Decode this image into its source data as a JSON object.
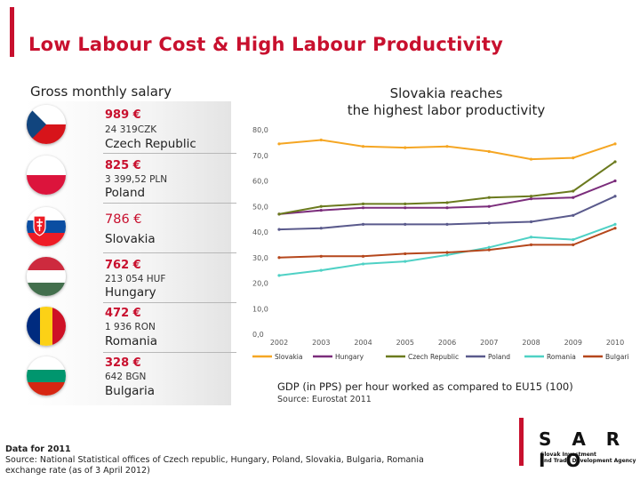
{
  "title": "Low Labour Cost & High Labour Productivity",
  "left_header": "Gross monthly salary",
  "countries": [
    {
      "amount": "989 €",
      "local": "24 319CZK",
      "name": "Czech Republic",
      "flag": "czech"
    },
    {
      "amount": "825 €",
      "local": "3 399,52 PLN",
      "name": "Poland",
      "flag": "poland"
    },
    {
      "amount": "786 €",
      "local": "",
      "name": "Slovakia",
      "flag": "slovakia"
    },
    {
      "amount": "762 €",
      "local": "213 054 HUF",
      "name": "Hungary",
      "flag": "hungary"
    },
    {
      "amount": "472 €",
      "local": "1 936 RON",
      "name": "Romania",
      "flag": "romania"
    },
    {
      "amount": "328 €",
      "local": "642 BGN",
      "name": "Bulgaria",
      "flag": "bulgaria"
    }
  ],
  "chart_title_line1": "Slovakia reaches",
  "chart_title_line2": "the highest labor productivity",
  "chart_caption": "GDP (in PPS) per hour worked as compared to EU15 (100)",
  "chart_source": "Source: Eurostat 2011",
  "bottom_note": {
    "line1": "Data for 2011",
    "line2": "Source: National Statistical offices of Czech republic, Hungary, Poland, Slovakia, Bulgaria, Romania",
    "line3": "exchange rate (as of 3 April 2012)"
  },
  "logo": {
    "name": "S A R I O",
    "sub1": "Slovak Investment",
    "sub2": "and Trade Development Agency"
  },
  "chart_data": {
    "type": "line",
    "title": "",
    "xlabel": "",
    "ylabel": "",
    "x": [
      "2002",
      "2003",
      "2004",
      "2005",
      "2006",
      "2007",
      "2008",
      "2009",
      "2010"
    ],
    "yticks": [
      "0,0",
      "10,0",
      "20,0",
      "30,0",
      "40,0",
      "50,0",
      "60,0",
      "70,0",
      "80,0"
    ],
    "ylim": [
      0,
      80
    ],
    "grid": false,
    "legend": "bottom",
    "series": [
      {
        "name": "Slovakia",
        "color": "#f5a623",
        "values": [
          74.5,
          76,
          73.5,
          73,
          73.5,
          71.5,
          68.5,
          69,
          74.5
        ]
      },
      {
        "name": "Hungary",
        "color": "#7b2d7b",
        "values": [
          47,
          48.5,
          49.5,
          49.5,
          49.5,
          50,
          53,
          53.5,
          60
        ]
      },
      {
        "name": "Czech Republic",
        "color": "#6b7a1e",
        "values": [
          47,
          50,
          51,
          51,
          51.5,
          53.5,
          54,
          56,
          67.5
        ]
      },
      {
        "name": "Poland",
        "color": "#5a5a8c",
        "values": [
          41,
          41.5,
          43,
          43,
          43,
          43.5,
          44,
          46.5,
          54
        ]
      },
      {
        "name": "Romania",
        "color": "#4fd1c5",
        "values": [
          23,
          25,
          27.5,
          28.5,
          31,
          34,
          38,
          37,
          43
        ]
      },
      {
        "name": "Bulgaria",
        "color": "#b5471c",
        "values": [
          30,
          30.5,
          30.5,
          31.5,
          32,
          33,
          35,
          35,
          41.5
        ]
      }
    ]
  }
}
